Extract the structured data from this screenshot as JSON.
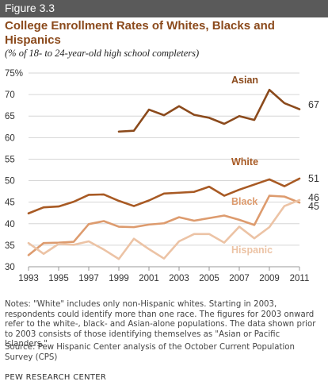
{
  "figure": {
    "label": "Figure 3.3",
    "title": "College Enrollment Rates of Whites, Blacks and Hispanics",
    "subtitle": "(% of 18- to 24-year-old high school completers)",
    "notes": "Notes: \"White\" includes only non-Hispanic whites. Starting in 2003, respondents could identify more than one race. The figures for 2003 onward refer to the white-, black- and Asian-alone populations. The data shown prior to 2003 consists of those identifying themselves as \"Asian or Pacific Islanders.\"",
    "source": "Source: Pew Hispanic Center analysis of the October Current Population Survey (CPS)",
    "org": "PEW RESEARCH CENTER"
  },
  "chart_data": {
    "type": "line",
    "title": "College Enrollment Rates of Whites, Blacks and Hispanics",
    "xlabel": "",
    "ylabel": "",
    "xlim": [
      1993,
      2011
    ],
    "ylim": [
      30,
      75
    ],
    "x_ticks": [
      1993,
      1995,
      1997,
      1999,
      2001,
      2003,
      2005,
      2007,
      2009,
      2011
    ],
    "y_ticks": [
      30,
      35,
      40,
      45,
      50,
      55,
      60,
      65,
      70,
      75
    ],
    "y_tick_labels": [
      "30",
      "35",
      "40",
      "45",
      "50",
      "55",
      "60",
      "65",
      "70",
      "75%"
    ],
    "grid": "horizontal",
    "series": [
      {
        "name": "Asian",
        "color": "#8b4a1c",
        "end_label": "67",
        "x": [
          1999,
          2000,
          2001,
          2002,
          2003,
          2004,
          2005,
          2006,
          2007,
          2008,
          2009,
          2010,
          2011
        ],
        "values": [
          61.4,
          61.6,
          66.5,
          65.2,
          67.3,
          65.3,
          64.6,
          63.2,
          65.0,
          64.1,
          71.1,
          68.0,
          66.6
        ]
      },
      {
        "name": "White",
        "color": "#a85a24",
        "end_label": "51",
        "x": [
          1993,
          1994,
          1995,
          1996,
          1997,
          1998,
          1999,
          2000,
          2001,
          2002,
          2003,
          2004,
          2005,
          2006,
          2007,
          2008,
          2009,
          2010,
          2011
        ],
        "values": [
          42.4,
          43.8,
          44.0,
          45.1,
          46.7,
          46.8,
          45.3,
          44.1,
          45.4,
          47.0,
          47.2,
          47.4,
          48.6,
          46.5,
          47.9,
          49.1,
          50.3,
          48.7,
          50.5
        ]
      },
      {
        "name": "Black",
        "color": "#dd9b6e",
        "end_label": "45",
        "x": [
          1993,
          1994,
          1995,
          1996,
          1997,
          1998,
          1999,
          2000,
          2001,
          2002,
          2003,
          2004,
          2005,
          2006,
          2007,
          2008,
          2009,
          2010,
          2011
        ],
        "values": [
          32.7,
          35.5,
          35.6,
          35.8,
          39.9,
          40.6,
          39.3,
          39.2,
          39.8,
          40.1,
          41.5,
          40.7,
          41.3,
          41.9,
          40.9,
          39.7,
          46.5,
          46.3,
          44.9
        ]
      },
      {
        "name": "Hispanic",
        "color": "#ecc3a5",
        "end_label": "46",
        "x": [
          1993,
          1994,
          1995,
          1996,
          1997,
          1998,
          1999,
          2000,
          2001,
          2002,
          2003,
          2004,
          2005,
          2006,
          2007,
          2008,
          2009,
          2010,
          2011
        ],
        "values": [
          35.5,
          33.0,
          35.3,
          35.1,
          35.9,
          34.0,
          31.8,
          36.5,
          34.1,
          31.9,
          35.9,
          37.6,
          37.6,
          35.6,
          39.3,
          36.6,
          39.2,
          44.1,
          45.5
        ]
      }
    ]
  }
}
